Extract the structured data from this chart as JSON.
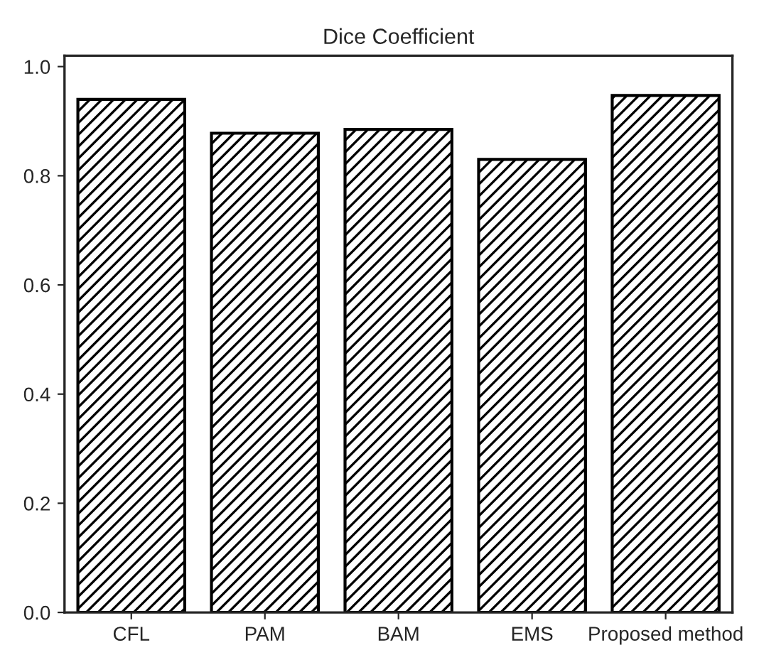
{
  "chart_data": {
    "type": "bar",
    "title": "Dice Coefficient",
    "categories": [
      "CFL",
      "PAM",
      "BAM",
      "EMS",
      "Proposed method"
    ],
    "values": [
      0.94,
      0.878,
      0.885,
      0.83,
      0.947
    ],
    "color": "#000000",
    "ylim": [
      0,
      1.02
    ],
    "yticks": [
      {
        "value": 0,
        "label": "0.0"
      },
      {
        "value": 0.2,
        "label": "0.2"
      },
      {
        "value": 0.4,
        "label": "0.4"
      },
      {
        "value": 0.6,
        "label": "0.6"
      },
      {
        "value": 0.8,
        "label": "0.8"
      },
      {
        "value": 1.0,
        "label": "1.0"
      }
    ],
    "grid": false
  }
}
